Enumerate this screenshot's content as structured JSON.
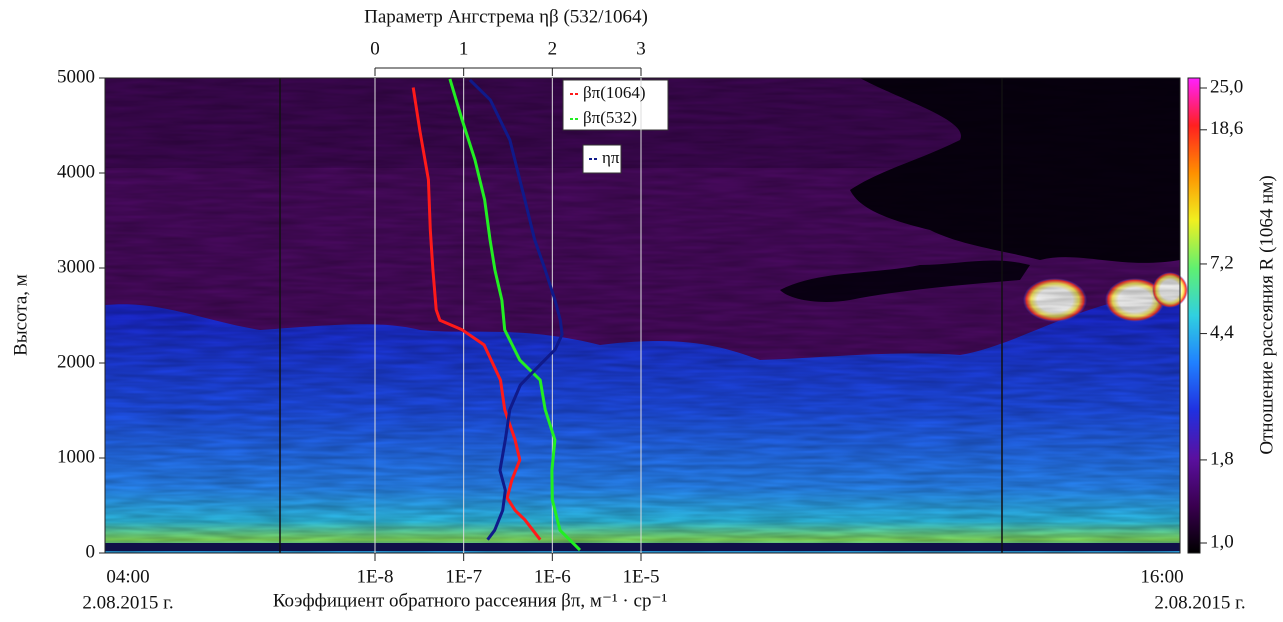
{
  "chart_data": {
    "type": "profile",
    "title_top": "Параметр Ангстрема ηβ (532/1064)",
    "xlabel": "Коэффициент обратного рассеяния βπ, м⁻¹ · ср⁻¹",
    "ylabel": "Высота, м",
    "ylim": [
      0,
      5000
    ],
    "yticks": [
      0,
      1000,
      2000,
      3000,
      4000,
      5000
    ],
    "xlim": [
      1e-08,
      1e-05
    ],
    "xscale": "log",
    "xticks": [
      {
        "value": 1e-08,
        "label": "1E-8"
      },
      {
        "value": 1e-07,
        "label": "1E-7"
      },
      {
        "value": 1e-06,
        "label": "1E-6"
      },
      {
        "value": 1e-05,
        "label": "1E-5"
      }
    ],
    "x2lim": [
      0,
      3
    ],
    "x2ticks": [
      0,
      1,
      2,
      3
    ],
    "time_labels": [
      {
        "time": "04:00",
        "date": "2.08.2015 г."
      },
      {
        "time": "16:00",
        "date": "2.08.2015 г."
      }
    ],
    "series": [
      {
        "name": "βπ(1064)",
        "color": "#ff1a1a",
        "axis": "x",
        "heights": [
          4900,
          4450,
          3930,
          3400,
          2980,
          2560,
          2450,
          2350,
          2190,
          1820,
          1510,
          1190,
          980,
          770,
          580,
          450,
          350,
          140
        ],
        "values": [
          2.7e-08,
          3.2e-08,
          4e-08,
          4.2e-08,
          4.5e-08,
          4.9e-08,
          5.4e-08,
          9.6e-08,
          1.7e-07,
          2.6e-07,
          2.9e-07,
          3.8e-07,
          4.3e-07,
          3.5e-07,
          3.1e-07,
          3.8e-07,
          4.9e-07,
          7.3e-07
        ]
      },
      {
        "name": "βπ(532)",
        "color": "#22ee22",
        "axis": "x",
        "heights": [
          4990,
          4560,
          4140,
          3720,
          3300,
          2980,
          2660,
          2350,
          2030,
          1820,
          1510,
          1190,
          870,
          560,
          240,
          30
        ],
        "values": [
          7e-08,
          9.6e-08,
          1.34e-07,
          1.72e-07,
          1.98e-07,
          2.25e-07,
          2.7e-07,
          2.9e-07,
          4.3e-07,
          7.3e-07,
          8.3e-07,
          1.07e-06,
          9.9e-07,
          1e-06,
          1.22e-06,
          2.05e-06
        ]
      },
      {
        "name": "ηπ",
        "color": "#101a8a",
        "axis": "x2",
        "heights": [
          4980,
          4770,
          4350,
          3720,
          3300,
          2980,
          2660,
          2450,
          2300,
          2140,
          1980,
          1770,
          1510,
          1190,
          870,
          660,
          450,
          240,
          140
        ],
        "values": [
          1.07,
          1.3,
          1.52,
          1.69,
          1.8,
          1.92,
          2.03,
          2.09,
          2.11,
          2.03,
          1.86,
          1.64,
          1.52,
          1.47,
          1.41,
          1.47,
          1.44,
          1.35,
          1.27
        ]
      }
    ],
    "colorbar": {
      "label": "Отношение рассеяния R (1064 нм)",
      "clim": [
        1,
        25
      ],
      "scale": "log",
      "colors": [
        "#000000",
        "#3a0050",
        "#5a10a0",
        "#2030e0",
        "#2080ff",
        "#30d0e0",
        "#60f070",
        "#f0f020",
        "#ff9000",
        "#ff2020",
        "#ff20ff"
      ],
      "ticks": [
        {
          "value": 1,
          "label": "1,0"
        },
        {
          "value": 1.8,
          "label": "1,8"
        },
        {
          "value": 4.4,
          "label": "4,4"
        },
        {
          "value": 7.2,
          "label": "7,2"
        },
        {
          "value": 18.6,
          "label": "18,6"
        },
        {
          "value": 25,
          "label": "25,0"
        }
      ]
    }
  }
}
